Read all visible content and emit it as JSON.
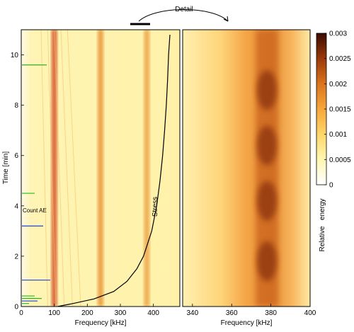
{
  "chart_data": [
    {
      "type": "heatmap",
      "panel": "left",
      "xlabel": "Frequency [kHz]",
      "ylabel": "Time [min]",
      "xlim": [
        0,
        480
      ],
      "ylim": [
        0,
        11
      ],
      "xticks": [
        "0",
        "100",
        "200",
        "300",
        "400"
      ],
      "yticks": [
        "0",
        "2",
        "4",
        "6",
        "8",
        "10"
      ],
      "ridges_khz": [
        {
          "freq": 240,
          "energy": 0.0012
        },
        {
          "freq": 380,
          "energy": 0.0009
        },
        {
          "freq": 100,
          "energy": 0.0007
        }
      ],
      "stress_curve": {
        "label": "Stress",
        "t": [
          0,
          0.1,
          0.3,
          0.6,
          1.0,
          1.5,
          2.0,
          3.0,
          4.0,
          5.0,
          6.0,
          7.0,
          8.0,
          9.0,
          10.0,
          10.8
        ],
        "freq": [
          110,
          150,
          220,
          280,
          320,
          350,
          370,
          395,
          410,
          420,
          428,
          434,
          439,
          443,
          446,
          450
        ]
      },
      "count_ae": {
        "label": "Count AE",
        "events": [
          {
            "t": 0.12,
            "len": 10,
            "color": "#22bb22"
          },
          {
            "t": 0.22,
            "len": 22,
            "color": "#2244cc"
          },
          {
            "t": 0.32,
            "len": 28,
            "color": "#22bb22"
          },
          {
            "t": 0.42,
            "len": 18,
            "color": "#22bb22"
          },
          {
            "t": 1.05,
            "len": 40,
            "color": "#2244cc"
          },
          {
            "t": 3.2,
            "len": 30,
            "color": "#2244cc"
          },
          {
            "t": 4.5,
            "len": 18,
            "color": "#22bb22"
          },
          {
            "t": 9.6,
            "len": 35,
            "color": "#22bb22"
          }
        ]
      }
    },
    {
      "type": "heatmap",
      "panel": "right",
      "title": "Detail",
      "xlabel": "Frequency [kHz]",
      "xlim": [
        335,
        400
      ],
      "ylim": [
        0,
        11
      ],
      "xticks": [
        "340",
        "360",
        "380",
        "400"
      ],
      "ridge_khz": 378,
      "high_energy_times_min": [
        1.8,
        4.2,
        6.4,
        8.6
      ]
    }
  ],
  "colorbar": {
    "label": "Relative   energy",
    "min": 0,
    "max": 0.003,
    "ticks": [
      "0",
      "0.0005",
      "0.001",
      "0.0015",
      "0.002",
      "0.0025",
      "0.003"
    ],
    "colors": [
      "#ffffff",
      "#fff6b0",
      "#ffd76a",
      "#f7a63a",
      "#d9731d",
      "#9d3a0b",
      "#3b0b00"
    ]
  }
}
